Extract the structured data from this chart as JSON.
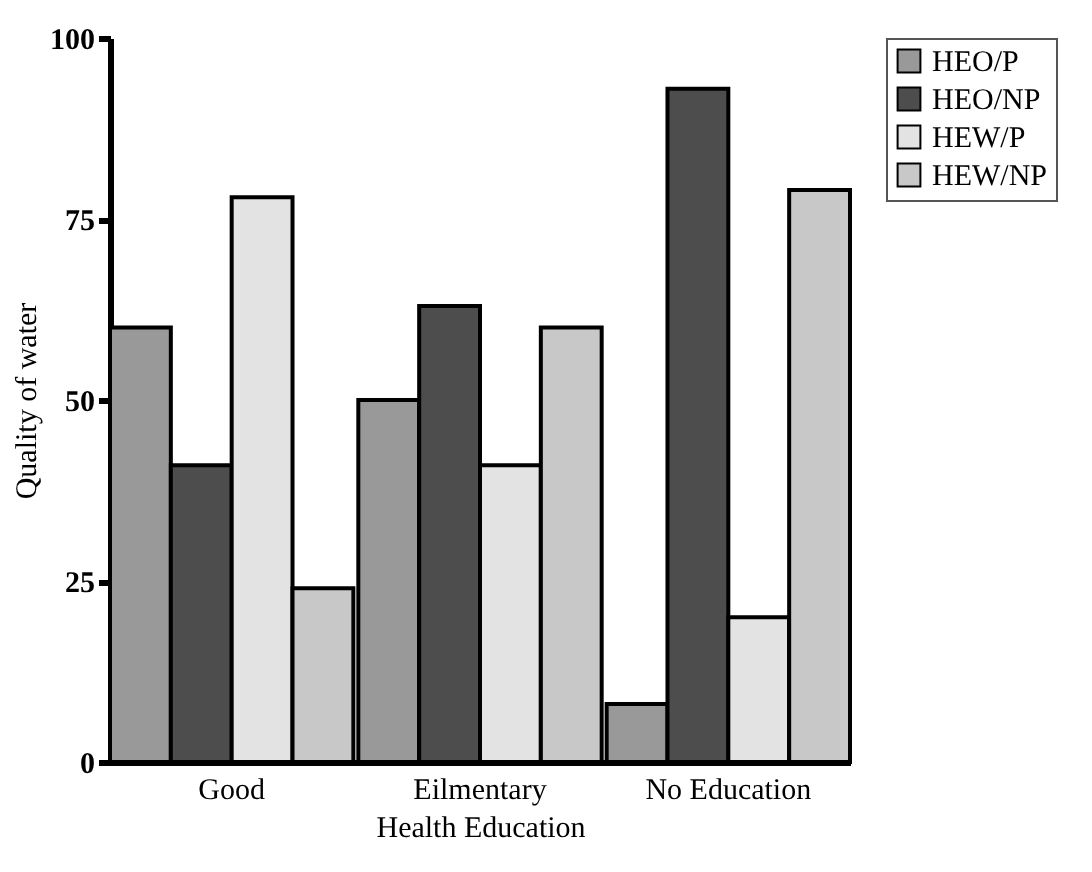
{
  "chart_data": {
    "type": "bar",
    "xlabel": "Health Education",
    "ylabel": "Quality of water",
    "categories": [
      "Good",
      "Eilmentary",
      "No Education"
    ],
    "series": [
      {
        "name": "HEO/P",
        "color": "#999999",
        "values": [
          60,
          50,
          8
        ]
      },
      {
        "name": "HEO/NP",
        "color": "#4d4d4d",
        "values": [
          41,
          63,
          93
        ]
      },
      {
        "name": "HEW/P",
        "color": "#e3e3e3",
        "values": [
          78,
          41,
          20
        ]
      },
      {
        "name": "HEW/NP",
        "color": "#c8c8c8",
        "values": [
          24,
          60,
          79
        ]
      }
    ],
    "ylim": [
      0,
      100
    ],
    "yticks": [
      0,
      25,
      50,
      75,
      100
    ],
    "grid": false,
    "legend": "right"
  }
}
